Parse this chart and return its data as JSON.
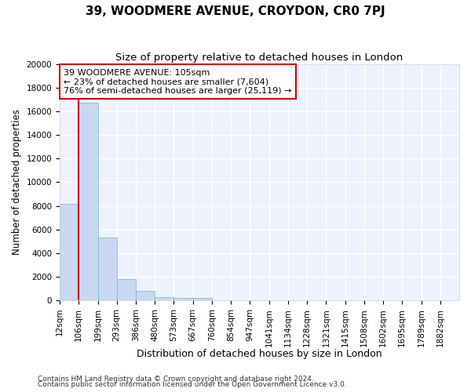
{
  "title1": "39, WOODMERE AVENUE, CROYDON, CR0 7PJ",
  "title2": "Size of property relative to detached houses in London",
  "xlabel": "Distribution of detached houses by size in London",
  "ylabel": "Number of detached properties",
  "bar_color": "#c8d8f0",
  "bar_edge_color": "#7bafd4",
  "x_labels": [
    "12sqm",
    "106sqm",
    "199sqm",
    "293sqm",
    "386sqm",
    "480sqm",
    "573sqm",
    "667sqm",
    "760sqm",
    "854sqm",
    "947sqm",
    "1041sqm",
    "1134sqm",
    "1228sqm",
    "1321sqm",
    "1415sqm",
    "1508sqm",
    "1602sqm",
    "1695sqm",
    "1789sqm",
    "1882sqm"
  ],
  "bar_values": [
    8200,
    16700,
    5300,
    1800,
    800,
    300,
    200,
    200,
    0,
    0,
    0,
    0,
    0,
    0,
    0,
    0,
    0,
    0,
    0,
    0,
    0
  ],
  "red_line_x": 1,
  "annotation_text": "39 WOODMERE AVENUE: 105sqm\n← 23% of detached houses are smaller (7,604)\n76% of semi-detached houses are larger (25,119) →",
  "annotation_box_color": "#ffffff",
  "annotation_border_color": "#cc0000",
  "red_line_color": "#cc0000",
  "ylim": [
    0,
    20000
  ],
  "yticks": [
    0,
    2000,
    4000,
    6000,
    8000,
    10000,
    12000,
    14000,
    16000,
    18000,
    20000
  ],
  "footnote1": "Contains HM Land Registry data © Crown copyright and database right 2024.",
  "footnote2": "Contains public sector information licensed under the Open Government Licence v3.0.",
  "background_color": "#edf2fc",
  "grid_color": "#ffffff",
  "title1_fontsize": 11,
  "title2_fontsize": 9.5,
  "annot_fontsize": 8,
  "tick_fontsize": 7.5,
  "ylabel_fontsize": 8.5,
  "xlabel_fontsize": 9,
  "footnote_fontsize": 6.5
}
